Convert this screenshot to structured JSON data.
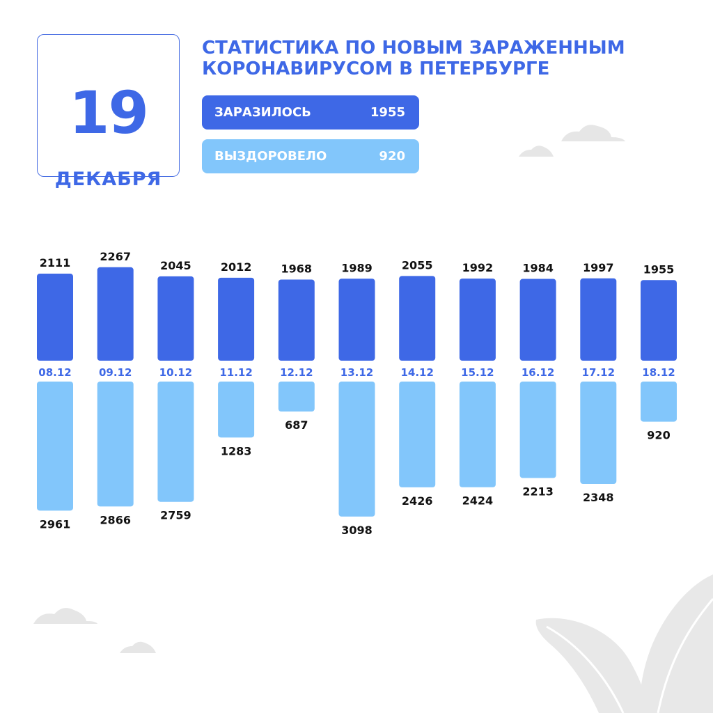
{
  "header": {
    "day": "19",
    "month": "ДЕКАБРЯ",
    "title_line1": "СТАТИСТИКА ПО НОВЫМ ЗАРАЖЕННЫМ",
    "title_line2": "КОРОНАВИРУСОМ В ПЕТЕРБУРГЕ"
  },
  "legend": {
    "infected_label": "ЗАРАЗИЛОСЬ",
    "infected_value": "1955",
    "recovered_label": "ВЫЗДОРОВЕЛО",
    "recovered_value": "920"
  },
  "colors": {
    "infected": "#3e68e6",
    "recovered": "#82c6fb",
    "date_label": "#3e68e6",
    "value_label": "#111111"
  },
  "chart_data": {
    "type": "bar",
    "categories": [
      "08.12",
      "09.12",
      "10.12",
      "11.12",
      "12.12",
      "13.12",
      "14.12",
      "15.12",
      "16.12",
      "17.12",
      "18.12"
    ],
    "series": [
      {
        "name": "ЗАРАЗИЛОСЬ",
        "values": [
          2111,
          2267,
          2045,
          2012,
          1968,
          1989,
          2055,
          1992,
          1984,
          1997,
          1955
        ]
      },
      {
        "name": "ВЫЗДОРОВЕЛО",
        "values": [
          2961,
          2866,
          2759,
          1283,
          687,
          3098,
          2426,
          2424,
          2213,
          2348,
          920
        ]
      }
    ]
  }
}
